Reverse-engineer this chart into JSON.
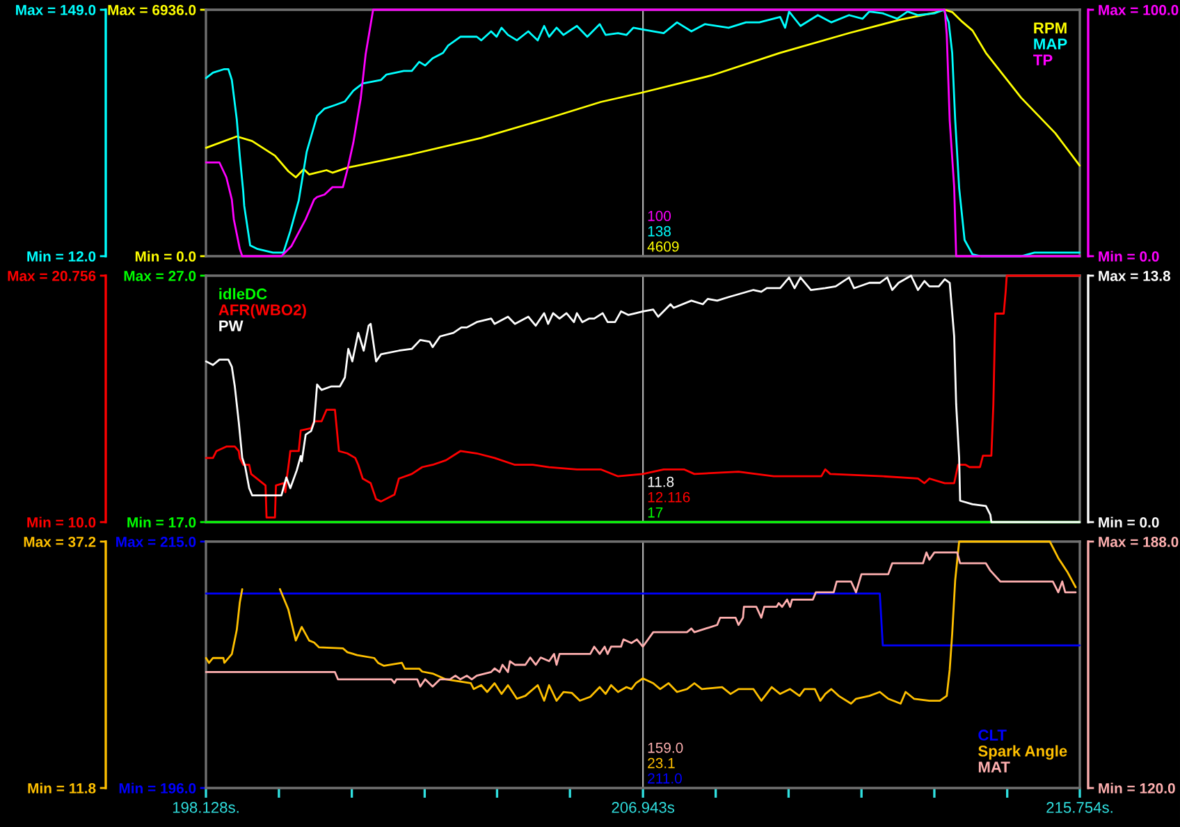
{
  "chart_data": [
    {
      "type": "line",
      "xlim": [
        198.128,
        215.754
      ],
      "tick_labels": "y",
      "ylim": [
        0,
        6936
      ],
      "yticks": [
        {
          "value": 6936,
          "label": "Max = 6936.0"
        },
        {
          "value": 0,
          "label": "Min = 0.0"
        }
      ],
      "y2lim": [
        12,
        149
      ],
      "y2ticks": [
        {
          "value": 149,
          "label": "Max = 149.0"
        },
        {
          "value": 12,
          "label": "Min = 12.0"
        }
      ],
      "y3lim": [
        0,
        100
      ],
      "y3ticks": [
        {
          "value": 100,
          "label": "Max = 100.0"
        },
        {
          "value": 0,
          "label": "Min = 0.0"
        }
      ],
      "legend": "top right",
      "ref_lines": [
        {
          "axis": "x",
          "value": 206.943,
          "color": "#b0b0b0"
        }
      ],
      "annotations": [
        "100",
        "138",
        "4609"
      ],
      "series": [
        {
          "name": "RPM",
          "color": "#ffff00",
          "axis": "y",
          "x": [
            198.13,
            198.75,
            199.06,
            199.52,
            199.79,
            199.94,
            200.1,
            200.21,
            200.56,
            200.68,
            200.98,
            202.28,
            203.68,
            205.05,
            206.09,
            206.94,
            208.33,
            209.7,
            211.1,
            212.14,
            212.82,
            213.03,
            213.18,
            213.38,
            213.59,
            213.86,
            214.57,
            215.26,
            215.67,
            215.75
          ],
          "values": [
            3050,
            3370,
            3240,
            2830,
            2390,
            2220,
            2450,
            2300,
            2420,
            2350,
            2490,
            2870,
            3330,
            3890,
            4340,
            4609,
            5090,
            5720,
            6280,
            6660,
            6850,
            6936,
            6870,
            6600,
            6350,
            5720,
            4460,
            3460,
            2700,
            2550
          ]
        },
        {
          "name": "MAP",
          "color": "#00ffff",
          "axis": "y2",
          "x": [
            198.13,
            198.27,
            198.5,
            198.58,
            198.65,
            198.75,
            198.81,
            198.88,
            198.9,
            199.02,
            199.17,
            199.48,
            199.69,
            199.83,
            200.0,
            200.16,
            200.37,
            200.52,
            200.73,
            200.93,
            201.1,
            201.29,
            201.66,
            201.77,
            202.12,
            202.28,
            202.43,
            202.55,
            202.7,
            202.91,
            203.01,
            203.26,
            203.39,
            203.59,
            203.68,
            203.88,
            203.99,
            204.09,
            204.22,
            204.4,
            204.63,
            204.82,
            204.95,
            205.05,
            205.2,
            205.34,
            205.61,
            205.82,
            206.07,
            206.19,
            206.44,
            206.61,
            206.75,
            206.94,
            207.36,
            207.63,
            207.92,
            208.19,
            208.67,
            209.02,
            209.29,
            209.71,
            209.81,
            209.89,
            210.12,
            210.47,
            210.74,
            211.1,
            211.37,
            211.51,
            211.78,
            212.07,
            212.28,
            212.49,
            212.82,
            213.01,
            213.11,
            213.18,
            213.24,
            213.32,
            213.43,
            213.59,
            213.76,
            214.57,
            214.84,
            215.67,
            215.75
          ],
          "values": [
            111,
            114,
            116,
            116,
            110,
            88,
            68,
            48,
            40,
            18,
            16,
            14,
            14,
            26,
            43,
            70,
            90,
            94,
            96,
            98,
            104,
            108,
            110,
            113,
            115,
            115,
            120,
            118,
            122,
            125,
            129,
            134,
            134,
            134,
            132,
            137,
            134,
            139,
            135,
            132,
            137,
            132,
            140,
            134,
            139,
            135,
            140,
            134,
            141,
            135,
            136,
            135,
            139,
            138,
            136,
            142,
            137,
            141,
            139,
            142,
            142,
            145,
            139,
            148,
            140,
            146,
            142,
            146,
            144,
            148,
            147,
            144,
            148,
            146,
            147,
            149,
            142,
            125,
            88,
            50,
            21,
            13,
            12,
            12,
            14,
            14,
            14
          ]
        },
        {
          "name": "TP",
          "color": "#ff00ff",
          "axis": "y3",
          "x": [
            198.13,
            198.4,
            198.54,
            198.65,
            198.69,
            198.81,
            198.86,
            199.65,
            199.85,
            200.14,
            200.31,
            200.37,
            200.52,
            200.68,
            200.89,
            200.98,
            201.1,
            201.25,
            201.35,
            201.5,
            213.03,
            213.07,
            213.13,
            213.22,
            213.26,
            215.75
          ],
          "values": [
            38,
            38,
            32,
            23,
            15,
            3,
            0,
            0,
            4,
            15,
            23,
            24,
            25,
            28,
            28,
            35,
            46,
            64,
            82,
            100,
            100,
            90,
            55,
            28,
            0,
            0
          ]
        }
      ]
    },
    {
      "type": "line",
      "xlim": [
        198.128,
        215.754
      ],
      "tick_labels": "y",
      "ylim": [
        17,
        27
      ],
      "yticks": [
        {
          "value": 27,
          "label": "Max = 27.0"
        },
        {
          "value": 17,
          "label": "Min = 17.0"
        }
      ],
      "y2lim": [
        10,
        20.756
      ],
      "y2ticks": [
        {
          "value": 20.756,
          "label": "Max = 20.756"
        },
        {
          "value": 10,
          "label": "Min = 10.0"
        }
      ],
      "y3lim": [
        0,
        13.8
      ],
      "y3ticks": [
        {
          "value": 13.8,
          "label": "Max = 13.8"
        },
        {
          "value": 0,
          "label": "Min = 0.0"
        }
      ],
      "legend": "top left",
      "ref_lines": [
        {
          "axis": "x",
          "value": 206.943,
          "color": "#b0b0b0"
        }
      ],
      "annotations": [
        "11.8",
        "12.116",
        "17"
      ],
      "series": [
        {
          "name": "idleDC",
          "color": "#00ff00",
          "axis": "y",
          "x": [
            198.13,
            215.75
          ],
          "values": [
            17,
            17
          ]
        },
        {
          "name": "AFR(WBO2)",
          "color": "#ff0000",
          "axis": "y2",
          "x": [
            198.13,
            198.27,
            198.34,
            198.54,
            198.71,
            198.79,
            198.81,
            198.88,
            199.0,
            199.04,
            199.33,
            199.35,
            199.52,
            199.54,
            199.69,
            199.73,
            199.75,
            199.79,
            199.83,
            200.0,
            200.04,
            200.25,
            200.31,
            200.46,
            200.56,
            200.73,
            200.81,
            200.98,
            201.14,
            201.2,
            201.29,
            201.45,
            201.56,
            201.66,
            201.93,
            202.02,
            202.28,
            202.49,
            202.7,
            202.97,
            203.26,
            203.59,
            203.95,
            204.36,
            204.72,
            205.05,
            205.61,
            206.09,
            206.44,
            206.94,
            207.36,
            207.77,
            207.98,
            208.87,
            209.58,
            210.41,
            210.54,
            210.62,
            210.72,
            211.78,
            212.49,
            212.62,
            212.72,
            213.03,
            213.22,
            213.3,
            213.45,
            213.53,
            213.74,
            213.8,
            213.97,
            214.01,
            214.05,
            214.22,
            214.26,
            214.28,
            215.75
          ],
          "values": [
            12.8,
            12.8,
            13.1,
            13.3,
            13.3,
            13.1,
            12.8,
            12.5,
            12.5,
            12.1,
            11.6,
            10.2,
            10.2,
            11.6,
            11.7,
            11.3,
            11.8,
            12.4,
            13.1,
            13.1,
            14.0,
            14.1,
            14.4,
            14.4,
            14.9,
            14.9,
            13.1,
            13.0,
            12.8,
            12.5,
            11.9,
            11.7,
            11.0,
            10.9,
            11.2,
            11.9,
            12.1,
            12.4,
            12.5,
            12.7,
            13.1,
            13.0,
            12.8,
            12.5,
            12.5,
            12.4,
            12.3,
            12.3,
            12.0,
            12.1,
            12.3,
            12.3,
            12.1,
            12.2,
            12.0,
            12.0,
            12.0,
            12.3,
            12.1,
            12.0,
            11.9,
            11.7,
            11.9,
            11.7,
            11.7,
            12.5,
            12.5,
            12.4,
            12.4,
            12.9,
            12.9,
            15.1,
            19.1,
            19.1,
            20.1,
            20.756,
            20.756
          ]
        },
        {
          "name": "PW",
          "color": "#ffffff",
          "axis": "y3",
          "x": [
            198.13,
            198.27,
            198.4,
            198.58,
            198.65,
            198.71,
            198.79,
            198.86,
            198.92,
            199.0,
            199.06,
            199.65,
            199.75,
            199.83,
            199.96,
            200.04,
            200.06,
            200.14,
            200.25,
            200.31,
            200.37,
            200.46,
            200.66,
            200.83,
            200.93,
            201.0,
            201.08,
            201.2,
            201.31,
            201.41,
            201.45,
            201.56,
            201.66,
            202.02,
            202.28,
            202.45,
            202.64,
            202.7,
            202.85,
            203.12,
            203.28,
            203.39,
            203.59,
            203.88,
            203.95,
            204.22,
            204.36,
            204.63,
            204.78,
            204.95,
            205.03,
            205.13,
            205.26,
            205.4,
            205.55,
            205.61,
            205.72,
            205.86,
            205.96,
            206.13,
            206.23,
            206.38,
            206.5,
            206.65,
            206.8,
            206.94,
            207.15,
            207.25,
            207.5,
            207.56,
            207.92,
            208.15,
            208.25,
            208.44,
            208.67,
            209.17,
            209.33,
            209.44,
            209.71,
            209.89,
            210.0,
            210.12,
            210.33,
            210.62,
            210.83,
            211.1,
            211.2,
            211.51,
            211.72,
            211.87,
            211.97,
            212.1,
            212.35,
            212.49,
            212.62,
            212.72,
            212.91,
            213.03,
            213.13,
            213.22,
            213.26,
            213.32,
            213.34,
            213.59,
            213.86,
            213.95,
            213.97,
            215.75
          ],
          "values": [
            9.0,
            8.8,
            9.1,
            9.1,
            8.7,
            7.6,
            5.6,
            3.6,
            3.1,
            1.9,
            1.5,
            1.5,
            2.5,
            1.9,
            2.9,
            3.7,
            3.4,
            4.9,
            5.1,
            5.6,
            7.7,
            7.4,
            7.6,
            7.6,
            8.1,
            9.7,
            9.0,
            10.6,
            9.6,
            11.0,
            11.1,
            9.0,
            9.4,
            9.6,
            9.7,
            10.2,
            10.1,
            9.8,
            10.4,
            10.6,
            10.9,
            10.9,
            11.2,
            11.4,
            11.1,
            11.5,
            11.1,
            11.5,
            11.0,
            11.7,
            11.1,
            11.7,
            11.4,
            11.7,
            11.2,
            11.7,
            11.2,
            11.4,
            11.4,
            11.7,
            11.2,
            11.2,
            11.8,
            11.6,
            11.7,
            11.8,
            11.9,
            11.5,
            12.2,
            12.0,
            12.4,
            12.2,
            12.5,
            12.4,
            12.6,
            13.0,
            12.9,
            13.1,
            13.1,
            13.7,
            13.1,
            13.7,
            13.0,
            13.1,
            13.2,
            13.7,
            13.1,
            13.4,
            13.4,
            13.7,
            13.0,
            13.4,
            13.8,
            13.0,
            13.5,
            13.2,
            13.2,
            13.6,
            13.4,
            10.4,
            6.6,
            3.6,
            1.2,
            1.0,
            0.9,
            0.4,
            0,
            0
          ]
        }
      ]
    },
    {
      "type": "line",
      "xlim": [
        198.128,
        215.754
      ],
      "xticks": [
        {
          "value": 198.128,
          "label": "198.128s."
        },
        {
          "value": 199.6,
          "label": null
        },
        {
          "value": 201.07,
          "label": null
        },
        {
          "value": 202.54,
          "label": null
        },
        {
          "value": 204.0,
          "label": null
        },
        {
          "value": 205.47,
          "label": null
        },
        {
          "value": 206.943,
          "label": "206.943s"
        },
        {
          "value": 208.41,
          "label": null
        },
        {
          "value": 209.88,
          "label": null
        },
        {
          "value": 211.35,
          "label": null
        },
        {
          "value": 212.82,
          "label": null
        },
        {
          "value": 214.29,
          "label": null
        },
        {
          "value": 215.754,
          "label": "215.754s."
        }
      ],
      "ylim": [
        196,
        215
      ],
      "yticks": [
        {
          "value": 215,
          "label": "Max = 215.0"
        },
        {
          "value": 196,
          "label": "Min = 196.0"
        }
      ],
      "y2lim": [
        11.8,
        37.2
      ],
      "y2ticks": [
        {
          "value": 37.2,
          "label": "Max = 37.2"
        },
        {
          "value": 11.8,
          "label": "Min = 11.8"
        }
      ],
      "y3lim": [
        120,
        188
      ],
      "y3ticks": [
        {
          "value": 188,
          "label": "Max = 188.0"
        },
        {
          "value": 120,
          "label": "Min = 120.0"
        }
      ],
      "legend": "bottom right",
      "ref_lines": [
        {
          "axis": "x",
          "value": 206.943,
          "color": "#b0b0b0"
        }
      ],
      "annotations": [
        "159.0",
        "23.1",
        "211.0"
      ],
      "series": [
        {
          "name": "CLT",
          "color": "#0000ff",
          "axis": "y",
          "x": [
            198.13,
            211.72,
            211.78,
            215.75
          ],
          "values": [
            211.0,
            211.0,
            207.0,
            207.0
          ]
        },
        {
          "name": "Spark Angle",
          "color": "#ffc000",
          "axis": "y2",
          "x": [
            198.13,
            198.19,
            198.27,
            198.48,
            198.5,
            198.65,
            198.75,
            198.81,
            198.86,
            199.23,
            199.62,
            199.79,
            199.94,
            200.06,
            200.21,
            200.31,
            200.41,
            200.89,
            200.98,
            201.18,
            201.52,
            201.6,
            201.72,
            202.08,
            202.14,
            202.43,
            202.49,
            202.7,
            202.97,
            203.47,
            203.53,
            203.68,
            203.8,
            203.95,
            204.09,
            204.22,
            204.4,
            204.57,
            204.82,
            204.95,
            205.05,
            205.2,
            205.34,
            205.51,
            205.67,
            205.88,
            206.07,
            206.19,
            206.3,
            206.44,
            206.61,
            206.71,
            206.8,
            206.94,
            207.15,
            207.29,
            207.46,
            207.63,
            207.83,
            207.98,
            208.13,
            208.54,
            208.71,
            208.87,
            209.17,
            209.33,
            209.54,
            209.71,
            209.91,
            210.1,
            210.2,
            210.41,
            210.52,
            210.62,
            210.74,
            210.89,
            211.14,
            211.24,
            211.51,
            211.72,
            211.89,
            212.14,
            212.24,
            212.41,
            212.72,
            212.93,
            213.07,
            213.13,
            213.18,
            213.24,
            213.32,
            215.15,
            215.32,
            215.5,
            215.67
          ],
          "values": [
            25.2,
            24.7,
            25.2,
            25.2,
            24.7,
            25.6,
            28.1,
            30.9,
            32.3,
            null,
            32.3,
            30.2,
            27.0,
            28.4,
            27.0,
            26.8,
            26.3,
            26.2,
            25.8,
            25.5,
            25.2,
            24.7,
            24.4,
            24.7,
            24.1,
            24.1,
            23.8,
            23.6,
            23.0,
            22.6,
            22.0,
            22.4,
            21.7,
            22.6,
            21.5,
            22.4,
            21.0,
            21.3,
            22.4,
            20.8,
            22.4,
            20.8,
            21.7,
            21.6,
            20.8,
            21.2,
            22.2,
            21.5,
            22.4,
            21.7,
            22.2,
            22.0,
            22.6,
            23.1,
            22.6,
            22.0,
            22.6,
            21.7,
            22.0,
            22.6,
            22.0,
            22.2,
            21.5,
            22.0,
            22.0,
            20.8,
            22.2,
            21.5,
            22.0,
            21.3,
            22.0,
            22.0,
            20.8,
            21.5,
            22.0,
            21.3,
            20.5,
            21.0,
            21.3,
            21.7,
            21.0,
            20.5,
            21.7,
            21.0,
            20.8,
            20.8,
            21.3,
            24.0,
            27.7,
            33.2,
            37.2,
            37.2,
            35.5,
            34.1,
            32.5
          ]
        },
        {
          "name": "MAT",
          "color": "#ffb0b0",
          "axis": "y3",
          "x": [
            198.13,
            200.73,
            200.79,
            201.87,
            201.93,
            201.97,
            202.39,
            202.45,
            202.55,
            202.7,
            202.85,
            203.05,
            203.16,
            203.26,
            203.39,
            203.49,
            203.59,
            203.88,
            203.95,
            204.05,
            204.11,
            204.22,
            204.26,
            204.36,
            204.57,
            204.67,
            204.78,
            204.88,
            205.05,
            205.15,
            205.2,
            205.26,
            205.65,
            205.88,
            205.96,
            206.07,
            206.17,
            206.23,
            206.3,
            206.5,
            206.55,
            206.71,
            206.82,
            206.94,
            207.15,
            207.83,
            207.92,
            207.98,
            208.44,
            208.5,
            208.81,
            208.87,
            208.96,
            208.98,
            209.23,
            209.33,
            209.39,
            209.64,
            209.68,
            209.75,
            209.85,
            209.91,
            209.95,
            210.37,
            210.43,
            210.79,
            210.85,
            211.14,
            211.24,
            211.35,
            211.89,
            211.97,
            212.59,
            212.66,
            212.72,
            212.82,
            213.28,
            213.34,
            213.86,
            213.95,
            214.15,
            215.21,
            215.32,
            215.4,
            215.46,
            215.67
          ],
          "values": [
            152,
            152,
            150,
            150,
            149,
            150,
            150,
            148,
            150,
            148,
            150,
            150,
            151,
            150,
            151,
            150,
            151,
            152,
            153,
            152,
            154,
            152,
            155,
            154,
            154,
            156,
            154,
            156,
            155,
            157,
            154,
            157,
            157,
            157,
            159,
            157,
            159,
            157,
            159,
            159,
            161,
            160,
            161,
            159,
            163,
            163,
            164,
            163,
            165,
            167,
            167,
            165,
            167,
            170,
            170,
            167,
            170,
            170,
            171,
            170,
            172,
            170,
            172,
            172,
            174,
            174,
            177,
            177,
            174,
            179,
            179,
            182,
            182,
            185,
            183,
            185,
            185,
            182,
            182,
            180,
            177,
            177,
            174,
            177,
            174,
            174
          ]
        }
      ]
    }
  ]
}
